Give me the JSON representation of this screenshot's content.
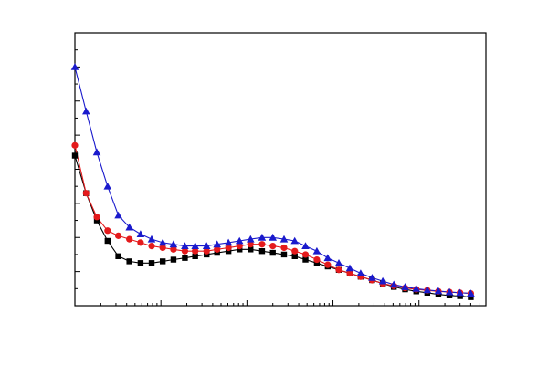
{
  "chart_data": {
    "type": "line",
    "x_scale": "log",
    "xlim": [
      1,
      60000
    ],
    "ylim": [
      0,
      8
    ],
    "grid": false,
    "legend": "none",
    "tick_labels_shown": false,
    "series": [
      {
        "marker": "square",
        "color": "#000000",
        "points": [
          [
            1,
            4.4
          ],
          [
            1.35,
            3.3
          ],
          [
            1.8,
            2.5
          ],
          [
            2.4,
            1.9
          ],
          [
            3.2,
            1.45
          ],
          [
            4.3,
            1.3
          ],
          [
            5.8,
            1.25
          ],
          [
            7.8,
            1.25
          ],
          [
            10.5,
            1.3
          ],
          [
            14,
            1.35
          ],
          [
            19,
            1.4
          ],
          [
            25,
            1.45
          ],
          [
            34,
            1.5
          ],
          [
            45,
            1.55
          ],
          [
            61,
            1.6
          ],
          [
            82,
            1.65
          ],
          [
            110,
            1.65
          ],
          [
            150,
            1.6
          ],
          [
            200,
            1.55
          ],
          [
            270,
            1.5
          ],
          [
            360,
            1.45
          ],
          [
            480,
            1.35
          ],
          [
            650,
            1.25
          ],
          [
            870,
            1.15
          ],
          [
            1170,
            1.05
          ],
          [
            1570,
            0.95
          ],
          [
            2100,
            0.85
          ],
          [
            2850,
            0.75
          ],
          [
            3800,
            0.65
          ],
          [
            5100,
            0.55
          ],
          [
            6900,
            0.48
          ],
          [
            9300,
            0.42
          ],
          [
            12500,
            0.38
          ],
          [
            16800,
            0.33
          ],
          [
            22600,
            0.3
          ],
          [
            30000,
            0.28
          ],
          [
            40000,
            0.25
          ]
        ]
      },
      {
        "marker": "circle",
        "color": "#e41a1c",
        "points": [
          [
            1,
            4.7
          ],
          [
            1.35,
            3.3
          ],
          [
            1.8,
            2.6
          ],
          [
            2.4,
            2.2
          ],
          [
            3.2,
            2.05
          ],
          [
            4.3,
            1.95
          ],
          [
            5.8,
            1.85
          ],
          [
            7.8,
            1.75
          ],
          [
            10.5,
            1.7
          ],
          [
            14,
            1.65
          ],
          [
            19,
            1.6
          ],
          [
            25,
            1.6
          ],
          [
            34,
            1.6
          ],
          [
            45,
            1.65
          ],
          [
            61,
            1.7
          ],
          [
            82,
            1.75
          ],
          [
            110,
            1.8
          ],
          [
            150,
            1.8
          ],
          [
            200,
            1.75
          ],
          [
            270,
            1.7
          ],
          [
            360,
            1.6
          ],
          [
            480,
            1.5
          ],
          [
            650,
            1.35
          ],
          [
            870,
            1.2
          ],
          [
            1170,
            1.05
          ],
          [
            1570,
            0.95
          ],
          [
            2100,
            0.85
          ],
          [
            2850,
            0.75
          ],
          [
            3800,
            0.65
          ],
          [
            5100,
            0.58
          ],
          [
            6900,
            0.52
          ],
          [
            9300,
            0.48
          ],
          [
            12500,
            0.45
          ],
          [
            16800,
            0.42
          ],
          [
            22600,
            0.4
          ],
          [
            30000,
            0.38
          ],
          [
            40000,
            0.36
          ]
        ]
      },
      {
        "marker": "triangle",
        "color": "#1a1acc",
        "points": [
          [
            1,
            7.0
          ],
          [
            1.35,
            5.7
          ],
          [
            1.8,
            4.5
          ],
          [
            2.4,
            3.5
          ],
          [
            3.2,
            2.65
          ],
          [
            4.3,
            2.3
          ],
          [
            5.8,
            2.1
          ],
          [
            7.8,
            1.95
          ],
          [
            10.5,
            1.85
          ],
          [
            14,
            1.8
          ],
          [
            19,
            1.75
          ],
          [
            25,
            1.75
          ],
          [
            34,
            1.75
          ],
          [
            45,
            1.8
          ],
          [
            61,
            1.85
          ],
          [
            82,
            1.9
          ],
          [
            110,
            1.95
          ],
          [
            150,
            2.0
          ],
          [
            200,
            2.0
          ],
          [
            270,
            1.95
          ],
          [
            360,
            1.9
          ],
          [
            480,
            1.75
          ],
          [
            650,
            1.6
          ],
          [
            870,
            1.4
          ],
          [
            1170,
            1.25
          ],
          [
            1570,
            1.1
          ],
          [
            2100,
            0.95
          ],
          [
            2850,
            0.82
          ],
          [
            3800,
            0.72
          ],
          [
            5100,
            0.62
          ],
          [
            6900,
            0.55
          ],
          [
            9300,
            0.5
          ],
          [
            12500,
            0.46
          ],
          [
            16800,
            0.43
          ],
          [
            22600,
            0.4
          ],
          [
            30000,
            0.38
          ],
          [
            40000,
            0.36
          ]
        ]
      }
    ]
  }
}
